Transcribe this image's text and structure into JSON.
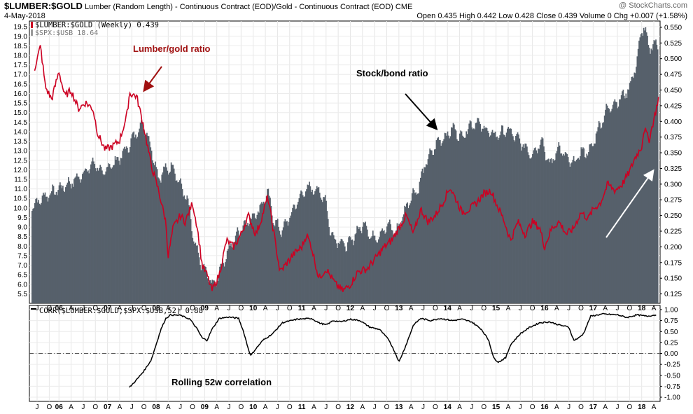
{
  "header": {
    "symbol": "$LUMBER:$GOLD",
    "description": "Lumber (Random Length) - Continuous Contract (EOD)/Gold - Continuous Contract (EOD)",
    "exchange": "CME",
    "date": "4-May-2018",
    "brand": "@ StockCharts.com",
    "open_label": "Open",
    "open": "0.435",
    "high_label": "High",
    "high": "0.442",
    "low_label": "Low",
    "low": "0.428",
    "close_label": "Close",
    "close": "0.439",
    "volume_label": "Volume",
    "volume": "0",
    "chg_label": "Chg",
    "chg": "+0.007 (+1.58%)"
  },
  "colors": {
    "bars": "#56606b",
    "lumber": "#cc0022",
    "corr": "#000000",
    "arrow_red": "#a01010"
  },
  "chart_data": [
    {
      "type": "bar+line",
      "title": "$LUMBER:$GOLD",
      "legend": [
        {
          "name": "$LUMBER:$GOLD (Weekly) 0.439",
          "color": "#cc0022"
        },
        {
          "name": "$SPX:$USB 18.64",
          "color": "#999999"
        }
      ],
      "left_axis": {
        "series": "$SPX:$USB",
        "ylim": [
          5.0,
          19.8
        ],
        "ticks": [
          "5.5",
          "6.0",
          "6.5",
          "7.0",
          "7.5",
          "8.0",
          "8.5",
          "9.0",
          "9.5",
          "10.0",
          "10.5",
          "11.0",
          "11.5",
          "12.0",
          "12.5",
          "13.0",
          "13.5",
          "14.0",
          "14.5",
          "15.0",
          "15.5",
          "16.0",
          "16.5",
          "17.0",
          "17.5",
          "18.0",
          "18.5",
          "19.0",
          "19.5"
        ]
      },
      "right_axis": {
        "series": "$LUMBER:$GOLD",
        "ylim": [
          0.11,
          0.56
        ],
        "ticks": [
          "0.125",
          "0.150",
          "0.175",
          "0.200",
          "0.225",
          "0.250",
          "0.275",
          "0.300",
          "0.325",
          "0.350",
          "0.375",
          "0.400",
          "0.425",
          "0.450",
          "0.475",
          "0.500",
          "0.525",
          "0.550"
        ]
      },
      "x_range": [
        2005.42,
        2018.35
      ],
      "spx_usb_bars": [
        [
          2005.45,
          10.1
        ],
        [
          2005.7,
          10.6
        ],
        [
          2006.0,
          11.0
        ],
        [
          2006.3,
          11.4
        ],
        [
          2006.5,
          11.8
        ],
        [
          2006.75,
          12.4
        ],
        [
          2006.9,
          11.7
        ],
        [
          2007.0,
          12.1
        ],
        [
          2007.25,
          12.6
        ],
        [
          2007.45,
          13.3
        ],
        [
          2007.6,
          14.0
        ],
        [
          2007.75,
          14.4
        ],
        [
          2007.9,
          13.2
        ],
        [
          2008.05,
          11.6
        ],
        [
          2008.2,
          12.0
        ],
        [
          2008.35,
          12.2
        ],
        [
          2008.5,
          11.2
        ],
        [
          2008.65,
          10.4
        ],
        [
          2008.8,
          8.0
        ],
        [
          2008.95,
          7.0
        ],
        [
          2009.1,
          6.3
        ],
        [
          2009.2,
          5.9
        ],
        [
          2009.35,
          7.0
        ],
        [
          2009.5,
          7.8
        ],
        [
          2009.65,
          8.5
        ],
        [
          2009.8,
          9.1
        ],
        [
          2009.95,
          9.4
        ],
        [
          2010.15,
          10.0
        ],
        [
          2010.3,
          10.8
        ],
        [
          2010.45,
          9.2
        ],
        [
          2010.6,
          8.8
        ],
        [
          2010.75,
          9.5
        ],
        [
          2010.95,
          10.5
        ],
        [
          2011.1,
          11.0
        ],
        [
          2011.3,
          11.0
        ],
        [
          2011.5,
          10.4
        ],
        [
          2011.6,
          8.6
        ],
        [
          2011.75,
          8.3
        ],
        [
          2011.95,
          8.0
        ],
        [
          2012.15,
          8.8
        ],
        [
          2012.3,
          9.2
        ],
        [
          2012.45,
          8.4
        ],
        [
          2012.6,
          8.6
        ],
        [
          2012.8,
          9.1
        ],
        [
          2012.95,
          8.7
        ],
        [
          2013.1,
          9.7
        ],
        [
          2013.25,
          10.6
        ],
        [
          2013.4,
          11.0
        ],
        [
          2013.55,
          12.3
        ],
        [
          2013.7,
          13.0
        ],
        [
          2013.85,
          13.6
        ],
        [
          2014.0,
          13.8
        ],
        [
          2014.1,
          14.2
        ],
        [
          2014.3,
          13.7
        ],
        [
          2014.45,
          14.3
        ],
        [
          2014.6,
          14.5
        ],
        [
          2014.75,
          14.2
        ],
        [
          2014.95,
          13.8
        ],
        [
          2015.1,
          13.9
        ],
        [
          2015.25,
          14.1
        ],
        [
          2015.45,
          13.6
        ],
        [
          2015.6,
          13.2
        ],
        [
          2015.75,
          12.8
        ],
        [
          2015.95,
          13.6
        ],
        [
          2016.1,
          12.2
        ],
        [
          2016.3,
          13.2
        ],
        [
          2016.45,
          12.6
        ],
        [
          2016.6,
          12.3
        ],
        [
          2016.75,
          12.9
        ],
        [
          2016.95,
          13.0
        ],
        [
          2017.1,
          14.1
        ],
        [
          2017.3,
          15.2
        ],
        [
          2017.45,
          15.5
        ],
        [
          2017.6,
          15.8
        ],
        [
          2017.75,
          16.3
        ],
        [
          2017.9,
          17.6
        ],
        [
          2018.0,
          19.3
        ],
        [
          2018.05,
          19.5
        ],
        [
          2018.15,
          18.4
        ],
        [
          2018.3,
          18.6
        ]
      ],
      "lumber_gold": [
        [
          2005.5,
          0.485
        ],
        [
          2005.62,
          0.52
        ],
        [
          2005.72,
          0.455
        ],
        [
          2005.85,
          0.435
        ],
        [
          2006.0,
          0.48
        ],
        [
          2006.12,
          0.44
        ],
        [
          2006.25,
          0.45
        ],
        [
          2006.4,
          0.42
        ],
        [
          2006.55,
          0.43
        ],
        [
          2006.7,
          0.42
        ],
        [
          2006.8,
          0.38
        ],
        [
          2006.95,
          0.355
        ],
        [
          2007.1,
          0.36
        ],
        [
          2007.25,
          0.37
        ],
        [
          2007.4,
          0.41
        ],
        [
          2007.45,
          0.445
        ],
        [
          2007.6,
          0.44
        ],
        [
          2007.75,
          0.39
        ],
        [
          2007.9,
          0.33
        ],
        [
          2008.05,
          0.29
        ],
        [
          2008.2,
          0.24
        ],
        [
          2008.25,
          0.185
        ],
        [
          2008.35,
          0.23
        ],
        [
          2008.5,
          0.25
        ],
        [
          2008.6,
          0.24
        ],
        [
          2008.75,
          0.27
        ],
        [
          2008.85,
          0.23
        ],
        [
          2008.95,
          0.17
        ],
        [
          2009.05,
          0.155
        ],
        [
          2009.15,
          0.13
        ],
        [
          2009.3,
          0.155
        ],
        [
          2009.45,
          0.21
        ],
        [
          2009.6,
          0.2
        ],
        [
          2009.75,
          0.22
        ],
        [
          2009.9,
          0.25
        ],
        [
          2010.05,
          0.22
        ],
        [
          2010.15,
          0.24
        ],
        [
          2010.3,
          0.28
        ],
        [
          2010.45,
          0.21
        ],
        [
          2010.55,
          0.16
        ],
        [
          2010.7,
          0.175
        ],
        [
          2010.85,
          0.19
        ],
        [
          2011.0,
          0.2
        ],
        [
          2011.1,
          0.22
        ],
        [
          2011.2,
          0.2
        ],
        [
          2011.35,
          0.15
        ],
        [
          2011.5,
          0.165
        ],
        [
          2011.7,
          0.14
        ],
        [
          2011.85,
          0.13
        ],
        [
          2012.0,
          0.14
        ],
        [
          2012.15,
          0.16
        ],
        [
          2012.35,
          0.165
        ],
        [
          2012.5,
          0.18
        ],
        [
          2012.7,
          0.2
        ],
        [
          2012.85,
          0.21
        ],
        [
          2013.0,
          0.23
        ],
        [
          2013.15,
          0.25
        ],
        [
          2013.3,
          0.22
        ],
        [
          2013.45,
          0.26
        ],
        [
          2013.6,
          0.24
        ],
        [
          2013.75,
          0.25
        ],
        [
          2013.9,
          0.27
        ],
        [
          2014.05,
          0.295
        ],
        [
          2014.15,
          0.28
        ],
        [
          2014.3,
          0.255
        ],
        [
          2014.45,
          0.26
        ],
        [
          2014.6,
          0.27
        ],
        [
          2014.75,
          0.285
        ],
        [
          2014.9,
          0.29
        ],
        [
          2015.0,
          0.27
        ],
        [
          2015.15,
          0.245
        ],
        [
          2015.3,
          0.21
        ],
        [
          2015.45,
          0.24
        ],
        [
          2015.6,
          0.22
        ],
        [
          2015.75,
          0.24
        ],
        [
          2015.9,
          0.23
        ],
        [
          2016.0,
          0.2
        ],
        [
          2016.15,
          0.23
        ],
        [
          2016.3,
          0.24
        ],
        [
          2016.45,
          0.22
        ],
        [
          2016.6,
          0.23
        ],
        [
          2016.75,
          0.255
        ],
        [
          2016.9,
          0.245
        ],
        [
          2017.0,
          0.26
        ],
        [
          2017.15,
          0.27
        ],
        [
          2017.3,
          0.3
        ],
        [
          2017.45,
          0.29
        ],
        [
          2017.6,
          0.3
        ],
        [
          2017.75,
          0.32
        ],
        [
          2017.85,
          0.34
        ],
        [
          2018.0,
          0.36
        ],
        [
          2018.05,
          0.39
        ],
        [
          2018.15,
          0.37
        ],
        [
          2018.3,
          0.42
        ],
        [
          2018.35,
          0.439
        ]
      ]
    },
    {
      "type": "line",
      "title": "CORR($LUMBER:$GOLD,$SPX:$USB,52) 0.88",
      "legend": [
        {
          "name": "CORR($LUMBER:$GOLD,$SPX:$USB,52) 0.88",
          "color": "#000000"
        }
      ],
      "ylim": [
        -1.0,
        1.0
      ],
      "ticks": [
        "-1.00",
        "-0.75",
        "-0.50",
        "-0.25",
        "0.00",
        "0.25",
        "0.50",
        "0.75",
        "1.00"
      ],
      "zero_line": true,
      "values": [
        [
          2007.45,
          -0.78
        ],
        [
          2007.6,
          -0.6
        ],
        [
          2007.75,
          -0.4
        ],
        [
          2007.9,
          -0.15
        ],
        [
          2008.0,
          0.2
        ],
        [
          2008.1,
          0.55
        ],
        [
          2008.2,
          0.8
        ],
        [
          2008.3,
          0.88
        ],
        [
          2008.5,
          0.87
        ],
        [
          2008.7,
          0.78
        ],
        [
          2008.85,
          0.55
        ],
        [
          2008.95,
          0.35
        ],
        [
          2009.05,
          0.3
        ],
        [
          2009.15,
          0.55
        ],
        [
          2009.3,
          0.8
        ],
        [
          2009.5,
          0.83
        ],
        [
          2009.7,
          0.8
        ],
        [
          2009.8,
          0.5
        ],
        [
          2009.9,
          0.1
        ],
        [
          2009.95,
          -0.05
        ],
        [
          2010.05,
          0.1
        ],
        [
          2010.2,
          0.3
        ],
        [
          2010.4,
          0.45
        ],
        [
          2010.6,
          0.7
        ],
        [
          2010.9,
          0.78
        ],
        [
          2011.2,
          0.8
        ],
        [
          2011.35,
          0.7
        ],
        [
          2011.5,
          0.65
        ],
        [
          2011.65,
          0.75
        ],
        [
          2011.8,
          0.72
        ],
        [
          2012.0,
          0.78
        ],
        [
          2012.2,
          0.75
        ],
        [
          2012.4,
          0.6
        ],
        [
          2012.6,
          0.55
        ],
        [
          2012.8,
          0.3
        ],
        [
          2012.95,
          -0.05
        ],
        [
          2013.0,
          -0.2
        ],
        [
          2013.15,
          0.2
        ],
        [
          2013.3,
          0.65
        ],
        [
          2013.45,
          0.8
        ],
        [
          2013.65,
          0.75
        ],
        [
          2013.85,
          0.8
        ],
        [
          2014.1,
          0.75
        ],
        [
          2014.3,
          0.78
        ],
        [
          2014.5,
          0.72
        ],
        [
          2014.7,
          0.55
        ],
        [
          2014.85,
          0.3
        ],
        [
          2014.95,
          -0.1
        ],
        [
          2015.05,
          -0.2
        ],
        [
          2015.2,
          -0.1
        ],
        [
          2015.3,
          0.2
        ],
        [
          2015.5,
          0.45
        ],
        [
          2015.7,
          0.6
        ],
        [
          2015.9,
          0.7
        ],
        [
          2016.1,
          0.72
        ],
        [
          2016.3,
          0.65
        ],
        [
          2016.5,
          0.6
        ],
        [
          2016.6,
          0.3
        ],
        [
          2016.7,
          0.35
        ],
        [
          2016.8,
          0.45
        ],
        [
          2016.95,
          0.85
        ],
        [
          2017.2,
          0.9
        ],
        [
          2017.5,
          0.88
        ],
        [
          2017.7,
          0.82
        ],
        [
          2017.9,
          0.88
        ],
        [
          2018.1,
          0.85
        ],
        [
          2018.3,
          0.88
        ]
      ]
    }
  ],
  "x_ticks": [
    {
      "t": 2005.55,
      "label": "J"
    },
    {
      "t": 2005.8,
      "label": "O"
    },
    {
      "t": 2006.0,
      "label": "06",
      "year": true
    },
    {
      "t": 2006.25,
      "label": "A"
    },
    {
      "t": 2006.5,
      "label": "J"
    },
    {
      "t": 2006.75,
      "label": "O"
    },
    {
      "t": 2007.0,
      "label": "07",
      "year": true
    },
    {
      "t": 2007.25,
      "label": "A"
    },
    {
      "t": 2007.5,
      "label": "J"
    },
    {
      "t": 2007.75,
      "label": "O"
    },
    {
      "t": 2008.0,
      "label": "08",
      "year": true
    },
    {
      "t": 2008.25,
      "label": "A"
    },
    {
      "t": 2008.5,
      "label": "J"
    },
    {
      "t": 2008.75,
      "label": "O"
    },
    {
      "t": 2009.0,
      "label": "09",
      "year": true
    },
    {
      "t": 2009.25,
      "label": "A"
    },
    {
      "t": 2009.5,
      "label": "J"
    },
    {
      "t": 2009.75,
      "label": "O"
    },
    {
      "t": 2010.0,
      "label": "10",
      "year": true
    },
    {
      "t": 2010.25,
      "label": "A"
    },
    {
      "t": 2010.5,
      "label": "J"
    },
    {
      "t": 2010.75,
      "label": "O"
    },
    {
      "t": 2011.0,
      "label": "11",
      "year": true
    },
    {
      "t": 2011.25,
      "label": "A"
    },
    {
      "t": 2011.5,
      "label": "J"
    },
    {
      "t": 2011.75,
      "label": "O"
    },
    {
      "t": 2012.0,
      "label": "12",
      "year": true
    },
    {
      "t": 2012.25,
      "label": "A"
    },
    {
      "t": 2012.5,
      "label": "J"
    },
    {
      "t": 2012.75,
      "label": "O"
    },
    {
      "t": 2013.0,
      "label": "13",
      "year": true
    },
    {
      "t": 2013.25,
      "label": "A"
    },
    {
      "t": 2013.5,
      "label": "J"
    },
    {
      "t": 2013.75,
      "label": "O"
    },
    {
      "t": 2014.0,
      "label": "14",
      "year": true
    },
    {
      "t": 2014.25,
      "label": "A"
    },
    {
      "t": 2014.5,
      "label": "J"
    },
    {
      "t": 2014.75,
      "label": "O"
    },
    {
      "t": 2015.0,
      "label": "15",
      "year": true
    },
    {
      "t": 2015.25,
      "label": "A"
    },
    {
      "t": 2015.5,
      "label": "J"
    },
    {
      "t": 2015.75,
      "label": "O"
    },
    {
      "t": 2016.0,
      "label": "16",
      "year": true
    },
    {
      "t": 2016.25,
      "label": "A"
    },
    {
      "t": 2016.5,
      "label": "J"
    },
    {
      "t": 2016.75,
      "label": "O"
    },
    {
      "t": 2017.0,
      "label": "17",
      "year": true
    },
    {
      "t": 2017.25,
      "label": "A"
    },
    {
      "t": 2017.5,
      "label": "J"
    },
    {
      "t": 2017.75,
      "label": "O"
    },
    {
      "t": 2018.0,
      "label": "18",
      "year": true
    },
    {
      "t": 2018.25,
      "label": "A"
    }
  ],
  "annotations": {
    "lumber_gold_ratio": "Lumber/gold ratio",
    "stock_bond_ratio": "Stock/bond ratio",
    "rolling": "Rolling 52w correlation"
  }
}
